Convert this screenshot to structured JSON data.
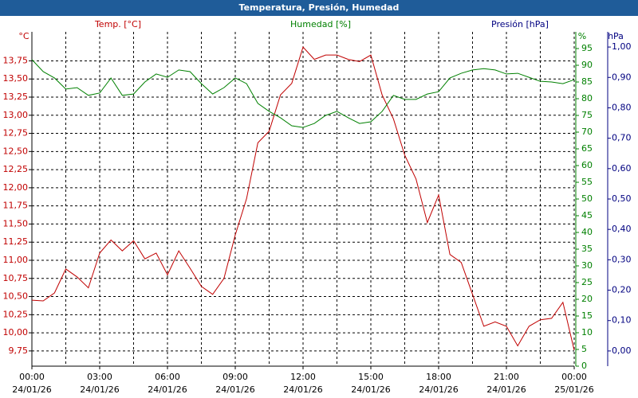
{
  "chart_data": {
    "type": "line",
    "title": "Temperatura, Presión, Humedad",
    "x": [
      0,
      0.5,
      1,
      1.5,
      2,
      2.5,
      3,
      3.5,
      4,
      4.5,
      5,
      5.5,
      6,
      6.5,
      7,
      7.5,
      8,
      8.5,
      9,
      9.5,
      10,
      10.5,
      11,
      11.5,
      12,
      12.5,
      13,
      13.5,
      14,
      14.5,
      15,
      15.5,
      16,
      16.5,
      17,
      17.5,
      18,
      18.5,
      19,
      19.5,
      20,
      20.5,
      21,
      21.5,
      22,
      22.5,
      23,
      23.5,
      24
    ],
    "series": [
      {
        "name": "Temp. [°C]",
        "color": "#c00000",
        "axis": "y",
        "values": [
          10.45,
          10.44,
          10.55,
          10.88,
          10.77,
          10.62,
          11.1,
          11.28,
          11.13,
          11.27,
          11.02,
          11.1,
          10.8,
          11.13,
          10.89,
          10.64,
          10.53,
          10.75,
          11.35,
          11.85,
          12.62,
          12.78,
          13.28,
          13.44,
          13.94,
          13.77,
          13.83,
          13.83,
          13.77,
          13.74,
          13.83,
          13.28,
          12.95,
          12.45,
          12.12,
          11.52,
          11.9,
          11.08,
          10.97,
          10.53,
          10.09,
          10.15,
          10.09,
          9.82,
          10.09,
          10.18,
          10.2,
          10.42,
          9.76
        ]
      },
      {
        "name": "Humedad [%]",
        "color": "#008000",
        "axis": "y2",
        "values": [
          91.7,
          88.1,
          86.2,
          82.9,
          83.3,
          81,
          81.7,
          86.2,
          81,
          81.4,
          85,
          87.4,
          86.4,
          88.6,
          88.1,
          84.5,
          81.4,
          83.3,
          86.2,
          84.5,
          78.6,
          76.2,
          74.3,
          71.9,
          71.4,
          72.6,
          75,
          76.2,
          74.3,
          72.6,
          73.1,
          76.2,
          81,
          79.8,
          79.8,
          81.4,
          82.1,
          86.2,
          87.6,
          88.6,
          89,
          88.6,
          87.4,
          87.6,
          86.4,
          85.2,
          85,
          84.5,
          85.7
        ]
      }
    ],
    "xlim": [
      0,
      24
    ],
    "xticks": [
      {
        "value": 0,
        "label": "00:00"
      },
      {
        "value": 3,
        "label": "03:00"
      },
      {
        "value": 6,
        "label": "06:00"
      },
      {
        "value": 9,
        "label": "09:00"
      },
      {
        "value": 12,
        "label": "12:00"
      },
      {
        "value": 15,
        "label": "15:00"
      },
      {
        "value": 18,
        "label": "18:00"
      },
      {
        "value": 21,
        "label": "21:00"
      },
      {
        "value": 24,
        "label": "00:00"
      }
    ],
    "xtick_dates": [
      "24/01/26",
      "24/01/26",
      "24/01/26",
      "24/01/26",
      "24/01/26",
      "24/01/26",
      "24/01/26",
      "24/01/26",
      "25/01/26"
    ],
    "xminorticks": [
      1.5,
      4.5,
      7.5,
      10.5,
      13.5,
      16.5,
      19.5,
      22.5
    ],
    "y_unit": "°C",
    "ylim": [
      9.54,
      14.15
    ],
    "yticks": [
      {
        "value": 9.75,
        "label": "9,75"
      },
      {
        "value": 10,
        "label": "10,00"
      },
      {
        "value": 10.25,
        "label": "10,25"
      },
      {
        "value": 10.5,
        "label": "10,50"
      },
      {
        "value": 10.75,
        "label": "10,75"
      },
      {
        "value": 11,
        "label": "11,00"
      },
      {
        "value": 11.25,
        "label": "11,25"
      },
      {
        "value": 11.5,
        "label": "11,50"
      },
      {
        "value": 11.75,
        "label": "11,75"
      },
      {
        "value": 12,
        "label": "12,00"
      },
      {
        "value": 12.25,
        "label": "12,25"
      },
      {
        "value": 12.5,
        "label": "12,50"
      },
      {
        "value": 12.75,
        "label": "12,75"
      },
      {
        "value": 13,
        "label": "13,00"
      },
      {
        "value": 13.25,
        "label": "13,25"
      },
      {
        "value": 13.5,
        "label": "13,50"
      },
      {
        "value": 13.75,
        "label": "13,75"
      }
    ],
    "y2_unit": "%",
    "y2lim": [
      0,
      100
    ],
    "y2ticks": [
      0,
      5,
      10,
      15,
      20,
      25,
      30,
      35,
      40,
      45,
      50,
      55,
      60,
      65,
      70,
      75,
      80,
      85,
      90,
      95
    ],
    "y3label": "Presión [hPa]",
    "y3_unit": "hPa",
    "y3lim": [
      -0.05,
      1.05
    ],
    "y3ticks": [
      {
        "value": 0,
        "label": "0,00"
      },
      {
        "value": 0.1,
        "label": "0,10"
      },
      {
        "value": 0.2,
        "label": "0,20"
      },
      {
        "value": 0.3,
        "label": "0,30"
      },
      {
        "value": 0.4,
        "label": "0,40"
      },
      {
        "value": 0.5,
        "label": "0,50"
      },
      {
        "value": 0.6,
        "label": "0,60"
      },
      {
        "value": 0.7,
        "label": "0,70"
      },
      {
        "value": 0.8,
        "label": "0,80"
      },
      {
        "value": 0.9,
        "label": "0,90"
      },
      {
        "value": 1,
        "label": "1,00"
      }
    ],
    "grid": true
  }
}
